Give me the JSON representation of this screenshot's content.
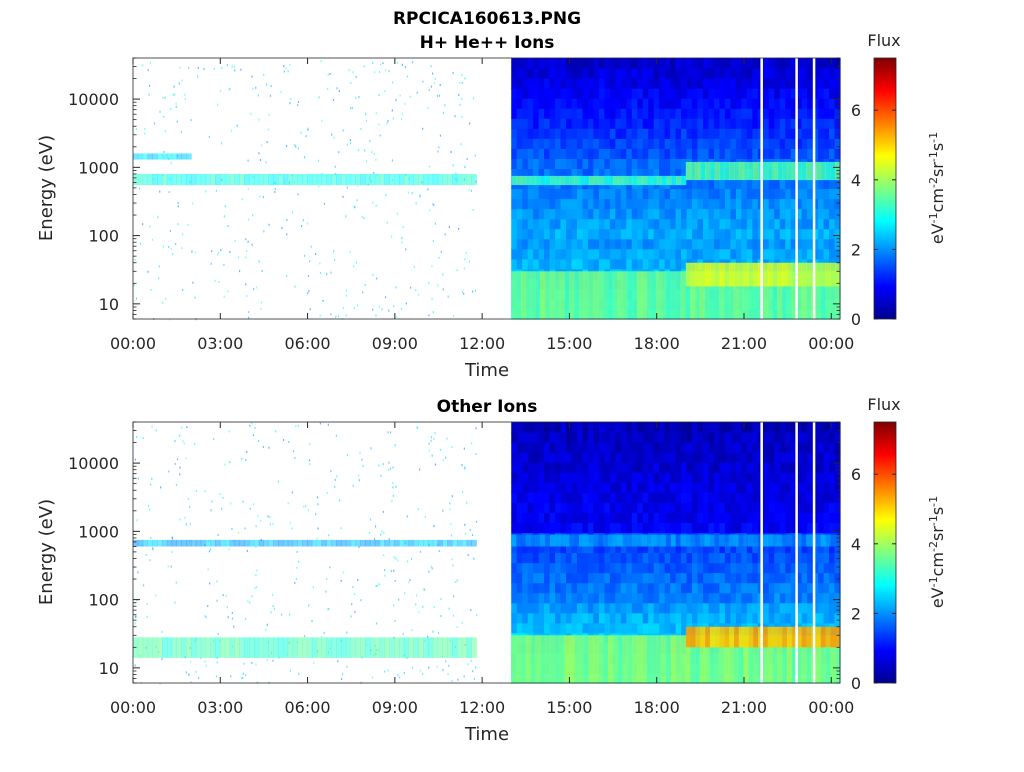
{
  "figure": {
    "title_line1": "RPCICA160613.PNG"
  },
  "chart_data": [
    {
      "type": "heatmap",
      "title": "H+ He++ Ions",
      "xlabel": "Time",
      "ylabel": "Energy (eV)",
      "x_ticks": [
        "00:00",
        "03:00",
        "06:00",
        "09:00",
        "12:00",
        "15:00",
        "18:00",
        "21:00",
        "00:00"
      ],
      "x_tick_hours": [
        0,
        3,
        6,
        9,
        12,
        15,
        18,
        21,
        24
      ],
      "xlim_hours": [
        0,
        24.3
      ],
      "yscale": "log",
      "y_ticks": [
        10,
        100,
        1000,
        10000
      ],
      "y_tick_labels": [
        "10",
        "100",
        "1000",
        "10000"
      ],
      "ylim": [
        6,
        40000
      ],
      "colorbar": {
        "label": "Flux",
        "units": "eV-1cm-2sr-1s-1",
        "units_parts": [
          "eV",
          "-1",
          "cm",
          "-2",
          "sr",
          "-1",
          "s",
          "-1"
        ],
        "range": [
          0,
          7.5
        ],
        "ticks": [
          0,
          2,
          4,
          6
        ],
        "tick_labels": [
          "0",
          "2",
          "4",
          "6"
        ],
        "colormap": "jet"
      },
      "data_gap_hours": [
        11.8,
        13.0
      ],
      "bands": [
        {
          "t_start": 0.0,
          "t_end": 11.8,
          "e_low": 550,
          "e_high": 800,
          "flux": 3.0
        },
        {
          "t_start": 0.0,
          "t_end": 2.0,
          "e_low": 1300,
          "e_high": 1600,
          "flux": 2.5
        },
        {
          "t_start": 13.0,
          "t_end": 24.3,
          "e_low": 6,
          "e_high": 30,
          "flux": 3.6
        },
        {
          "t_start": 19.0,
          "t_end": 24.3,
          "e_low": 18,
          "e_high": 40,
          "flux": 4.3
        },
        {
          "t_start": 13.0,
          "t_end": 19.0,
          "e_low": 550,
          "e_high": 750,
          "flux": 3.2
        },
        {
          "t_start": 19.0,
          "t_end": 24.3,
          "e_low": 650,
          "e_high": 1200,
          "flux": 3.4
        }
      ],
      "vertical_gaps_hours": [
        21.6,
        22.8,
        23.4
      ]
    },
    {
      "type": "heatmap",
      "title": "Other Ions",
      "xlabel": "Time",
      "ylabel": "Energy (eV)",
      "x_ticks": [
        "00:00",
        "03:00",
        "06:00",
        "09:00",
        "12:00",
        "15:00",
        "18:00",
        "21:00",
        "00:00"
      ],
      "x_tick_hours": [
        0,
        3,
        6,
        9,
        12,
        15,
        18,
        21,
        24
      ],
      "xlim_hours": [
        0,
        24.3
      ],
      "yscale": "log",
      "y_ticks": [
        10,
        100,
        1000,
        10000
      ],
      "y_tick_labels": [
        "10",
        "100",
        "1000",
        "10000"
      ],
      "ylim": [
        6,
        40000
      ],
      "colorbar": {
        "label": "Flux",
        "units": "eV-1cm-2sr-1s-1",
        "units_parts": [
          "eV",
          "-1",
          "cm",
          "-2",
          "sr",
          "-1",
          "s",
          "-1"
        ],
        "range": [
          0,
          7.5
        ],
        "ticks": [
          0,
          2,
          4,
          6
        ],
        "tick_labels": [
          "0",
          "2",
          "4",
          "6"
        ],
        "colormap": "jet"
      },
      "data_gap_hours": [
        11.8,
        13.0
      ],
      "bands": [
        {
          "t_start": 0.0,
          "t_end": 11.8,
          "e_low": 14,
          "e_high": 28,
          "flux": 3.3
        },
        {
          "t_start": 0.0,
          "t_end": 11.8,
          "e_low": 600,
          "e_high": 750,
          "flux": 2.3
        },
        {
          "t_start": 13.0,
          "t_end": 24.3,
          "e_low": 6,
          "e_high": 30,
          "flux": 3.8
        },
        {
          "t_start": 19.0,
          "t_end": 24.3,
          "e_low": 20,
          "e_high": 40,
          "flux": 5.2
        },
        {
          "t_start": 13.0,
          "t_end": 24.3,
          "e_low": 600,
          "e_high": 900,
          "flux": 2.0
        }
      ],
      "vertical_gaps_hours": [
        21.6,
        22.8,
        23.4
      ]
    }
  ]
}
